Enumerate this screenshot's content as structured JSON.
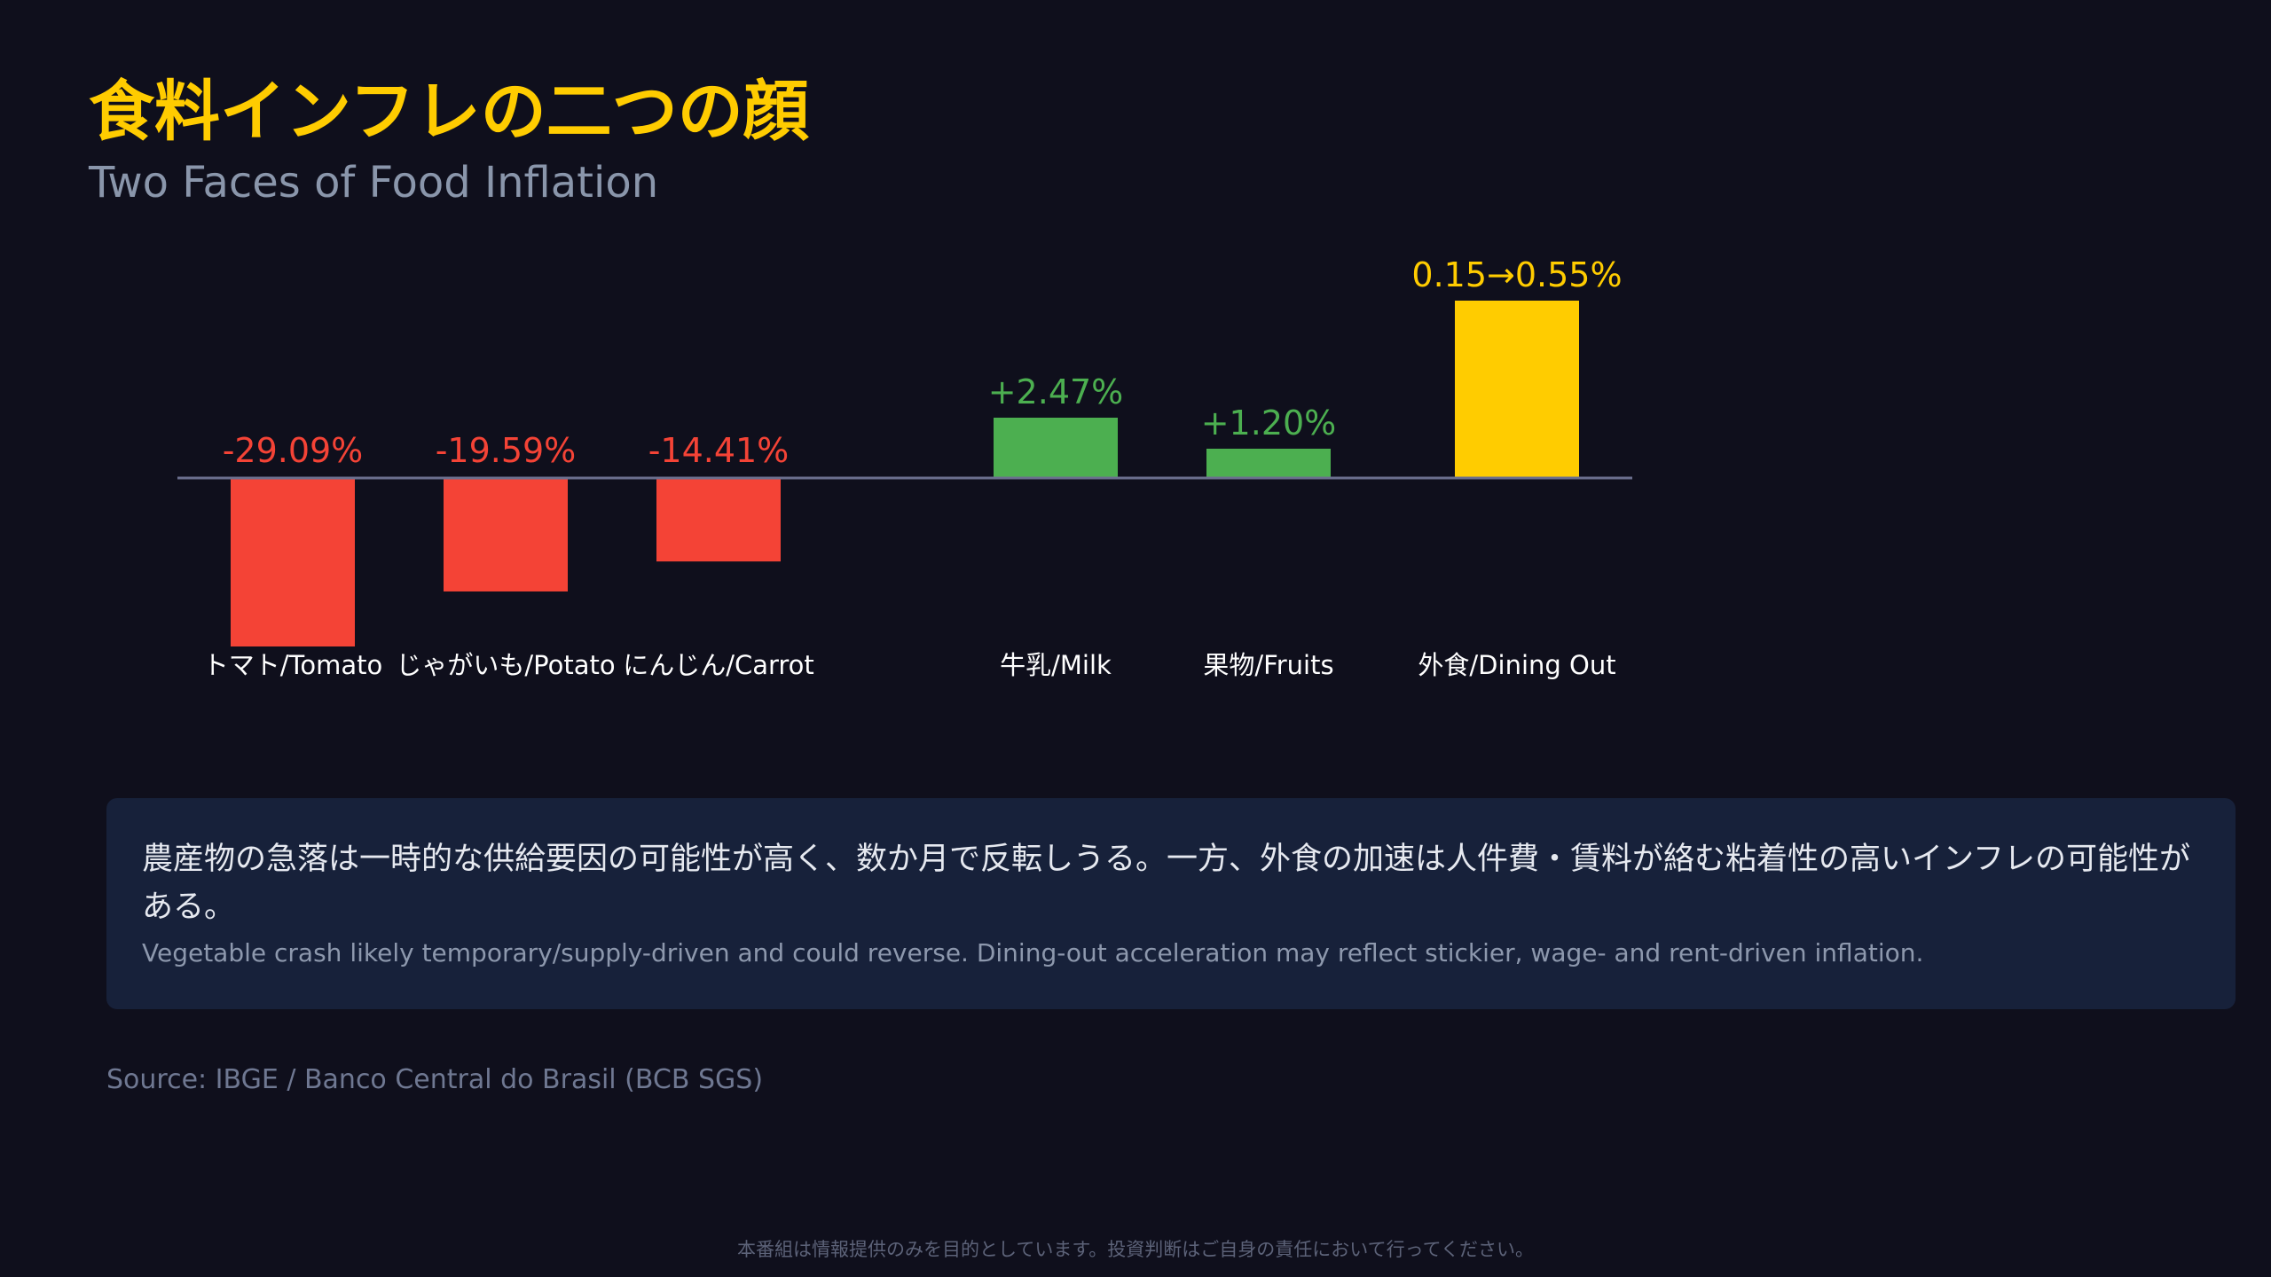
{
  "title": "食料インフレの二つの顔",
  "subtitle": "Two Faces of Food Inflation",
  "chart_data": {
    "type": "bar",
    "categories": [
      "トマト/Tomato",
      "じゃがいも/Potato",
      "にんじん/Carrot",
      "牛乳/Milk",
      "果物/Fruits",
      "外食/Dining Out"
    ],
    "values": [
      -29.09,
      -19.59,
      -14.41,
      2.47,
      1.2,
      0.55
    ],
    "value_labels": [
      "-29.09%",
      "-19.59%",
      "-14.41%",
      "+2.47%",
      "+1.20%",
      "0.15→0.55%"
    ],
    "bar_colors": [
      "#f44336",
      "#f44336",
      "#f44336",
      "#4caf50",
      "#4caf50",
      "#ffcc00"
    ],
    "label_colors": [
      "#f44336",
      "#f44336",
      "#f44336",
      "#4caf50",
      "#4caf50",
      "#ffcc00"
    ],
    "baseline": 0,
    "grid": false,
    "axis_color": "#6b6f8e",
    "category_label_color": "#ffffff"
  },
  "callout": {
    "main": "農産物の急落は一時的な供給要因の可能性が高く、数か月で反転しうる。一方、外食の加速は人件費・賃料が絡む粘着性の高いインフレの可能性がある。",
    "sub": "Vegetable crash likely temporary/supply-driven and could reverse. Dining-out acceleration may reflect stickier, wage- and rent-driven inflation."
  },
  "source": "Source: IBGE / Banco Central do Brasil (BCB SGS)",
  "disclaimer": "本番組は情報提供のみを目的としています。投資判断はご自身の責任において行ってください。"
}
